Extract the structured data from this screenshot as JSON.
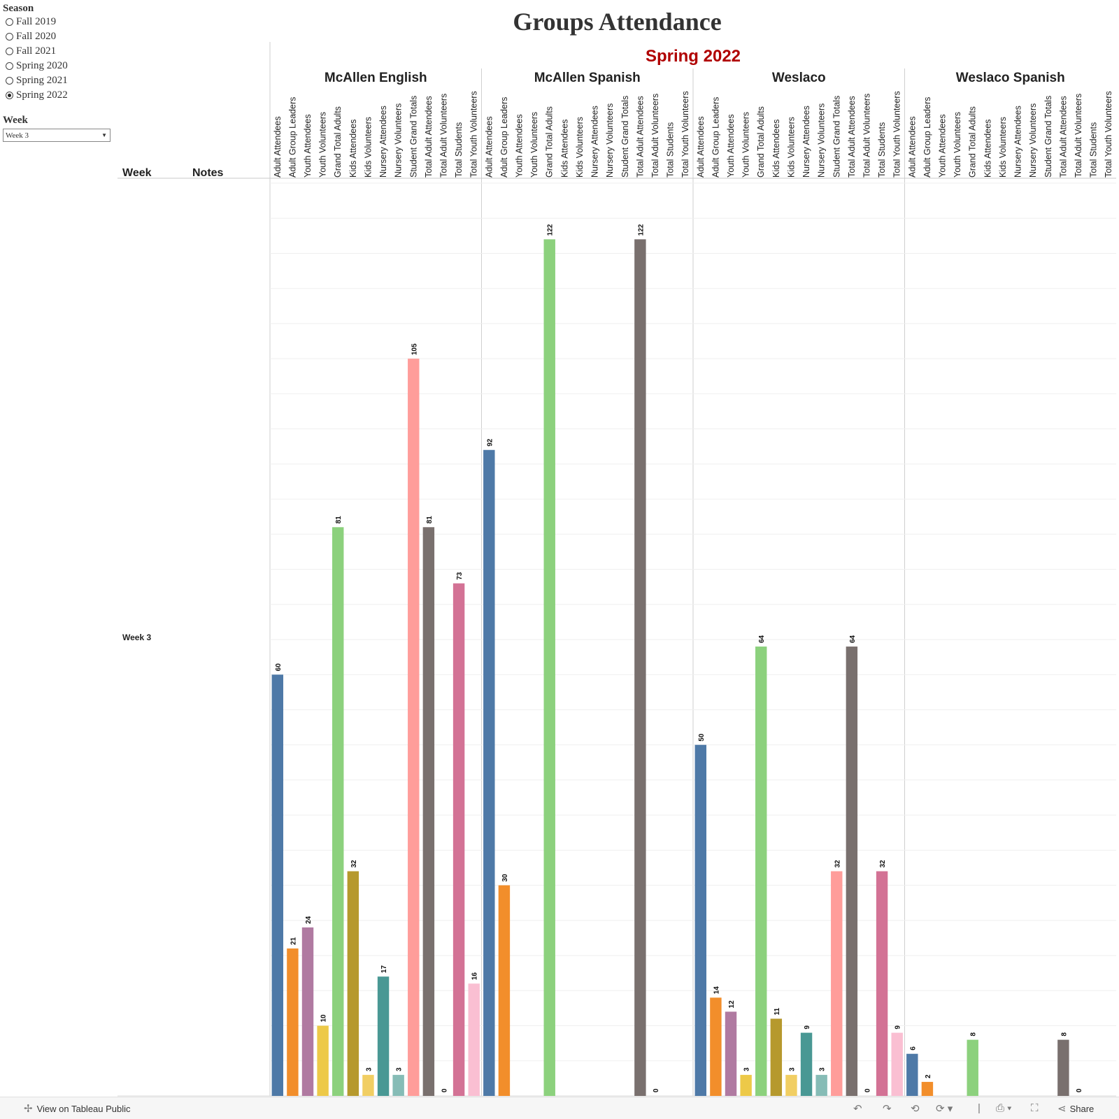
{
  "title": "Groups  Attendance",
  "filters": {
    "season": {
      "label": "Season",
      "options": [
        "Fall 2019",
        "Fall 2020",
        "Fall 2021",
        "Spring 2020",
        "Spring 2021",
        "Spring 2022"
      ],
      "selected": "Spring 2022"
    },
    "week": {
      "label": "Week",
      "selected": "Week 3"
    }
  },
  "row_headers": {
    "week": "Week",
    "notes": "Notes"
  },
  "colors": {
    "Adult Attendees": "#4e79a7",
    "Adult Group Leaders": "#f28e2b",
    "Youth Attendees": "#b07aa1",
    "Youth Volunteers": "#edc948",
    "Grand Total Adults": "#8cd17d",
    "Kids Attendees": "#b6992d",
    "Kids Volunteers": "#f1ce63",
    "Nursery Attendees": "#499894",
    "Nursery Volunteers": "#86bcb6",
    "Student Grand Totals": "#ff9d9a",
    "Total Adult Attendees": "#79706e",
    "Total Adult Volunteers": "#bab0ac",
    "Total Students": "#d37295",
    "Total Youth Volunteers": "#fabfd2",
    "title_red": "#b00000"
  },
  "chart_data": {
    "type": "bar",
    "title": "Groups  Attendance",
    "season_header": "Spring 2022",
    "row": "Week 3",
    "measures": [
      "Adult Attendees",
      "Adult Group Leaders",
      "Youth Attendees",
      "Youth Volunteers",
      "Grand Total Adults",
      "Kids Attendees",
      "Kids Volunteers",
      "Nursery Attendees",
      "Nursery Volunteers",
      "Student Grand Totals",
      "Total Adult Attendees",
      "Total Adult Volunteers",
      "Total Students",
      "Total Youth Volunteers"
    ],
    "ylim": [
      0,
      130
    ],
    "groups": [
      {
        "name": "McAllen English",
        "values": [
          60,
          21,
          24,
          10,
          81,
          32,
          3,
          17,
          3,
          105,
          81,
          0,
          73,
          16
        ]
      },
      {
        "name": "McAllen Spanish",
        "values": [
          92,
          30,
          null,
          null,
          122,
          null,
          null,
          null,
          null,
          null,
          122,
          0,
          null,
          null
        ]
      },
      {
        "name": "Weslaco",
        "values": [
          50,
          14,
          12,
          3,
          64,
          11,
          3,
          9,
          3,
          32,
          64,
          0,
          32,
          9
        ]
      },
      {
        "name": "Weslaco Spanish",
        "values": [
          6,
          2,
          null,
          null,
          8,
          null,
          null,
          null,
          null,
          null,
          8,
          0,
          null,
          null
        ]
      }
    ]
  },
  "footer": {
    "link": "View on Tableau Public",
    "share": "Share",
    "icons": [
      "undo-icon",
      "redo-icon",
      "revert-icon",
      "refresh-icon",
      "download-icon",
      "fullscreen-icon",
      "share-icon"
    ]
  }
}
